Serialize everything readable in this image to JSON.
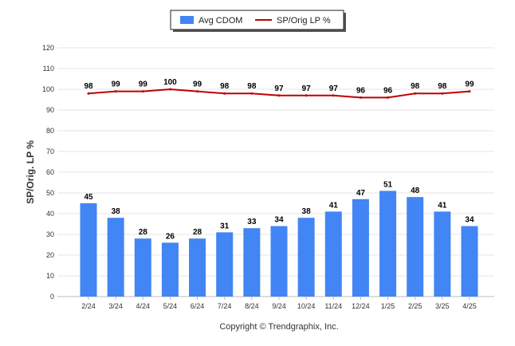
{
  "chart_data": {
    "type": "bar",
    "categories": [
      "2/24",
      "3/24",
      "4/24",
      "5/24",
      "6/24",
      "7/24",
      "8/24",
      "9/24",
      "10/24",
      "11/24",
      "12/24",
      "1/25",
      "2/25",
      "3/25",
      "4/25"
    ],
    "series": [
      {
        "name": "Avg CDOM",
        "type": "bar",
        "color": "#4285f4",
        "values": [
          45,
          38,
          28,
          26,
          28,
          31,
          33,
          34,
          38,
          41,
          47,
          51,
          48,
          41,
          34
        ]
      },
      {
        "name": "SP/Orig LP %",
        "type": "line",
        "color": "#c00000",
        "values": [
          98,
          99,
          99,
          100,
          99,
          98,
          98,
          97,
          97,
          97,
          96,
          96,
          98,
          98,
          99
        ]
      }
    ],
    "ylabel": "SP/Orig. LP %",
    "xlabel": "",
    "ylim": [
      0,
      120
    ],
    "yticks": [
      0,
      10,
      20,
      30,
      40,
      50,
      60,
      70,
      80,
      90,
      100,
      110,
      120
    ],
    "grid": true,
    "legend_position": "top-center",
    "data_labels": true
  },
  "footer": {
    "copyright": "Copyright © Trendgraphix, Inc."
  }
}
